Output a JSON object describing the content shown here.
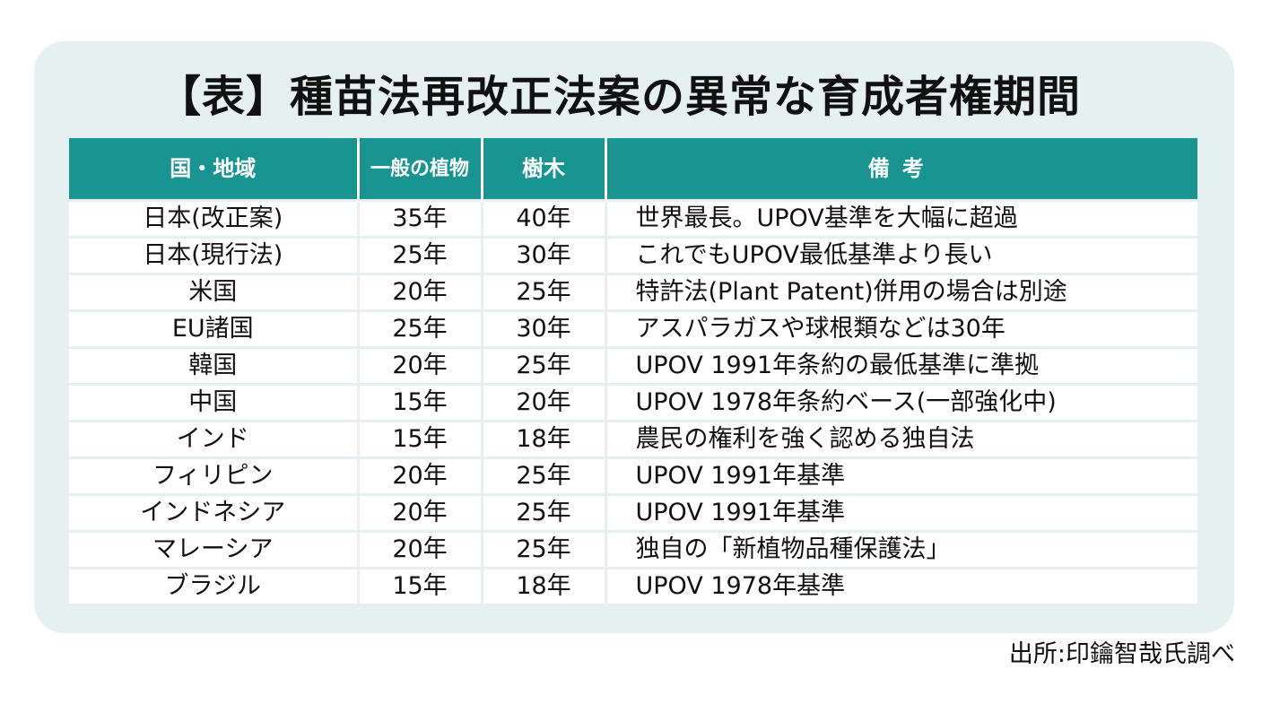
{
  "title": "【表】種苗法再改正法案の異常な育成者権期間",
  "table": {
    "headers": {
      "country": "国・地域",
      "general_plants": "一般の植物",
      "trees": "樹木",
      "remarks": "備考"
    },
    "rows": [
      {
        "country": "日本(改正案)",
        "general": "35年",
        "tree": "40年",
        "note": "世界最長。UPOV基準を大幅に超過"
      },
      {
        "country": "日本(現行法)",
        "general": "25年",
        "tree": "30年",
        "note": "これでもUPOV最低基準より長い"
      },
      {
        "country": "米国",
        "general": "20年",
        "tree": "25年",
        "note": "特許法(Plant Patent)併用の場合は別途"
      },
      {
        "country": "EU諸国",
        "general": "25年",
        "tree": "30年",
        "note": "アスパラガスや球根類などは30年"
      },
      {
        "country": "韓国",
        "general": "20年",
        "tree": "25年",
        "note": "UPOV 1991年条約の最低基準に準拠"
      },
      {
        "country": "中国",
        "general": "15年",
        "tree": "20年",
        "note": "UPOV 1978年条約ベース(一部強化中)"
      },
      {
        "country": "インド",
        "general": "15年",
        "tree": "18年",
        "note": "農民の権利を強く認める独自法"
      },
      {
        "country": "フィリピン",
        "general": "20年",
        "tree": "25年",
        "note": "UPOV 1991年基準"
      },
      {
        "country": "インドネシア",
        "general": "20年",
        "tree": "25年",
        "note": "UPOV 1991年基準"
      },
      {
        "country": "マレーシア",
        "general": "20年",
        "tree": "25年",
        "note": "独自の「新植物品種保護法」"
      },
      {
        "country": "ブラジル",
        "general": "15年",
        "tree": "18年",
        "note": "UPOV 1978年基準"
      }
    ]
  },
  "source": "出所:印鑰智哉氏調べ",
  "colors": {
    "header_bg": "#1a9490",
    "panel_bg": "#e7f0f1"
  }
}
